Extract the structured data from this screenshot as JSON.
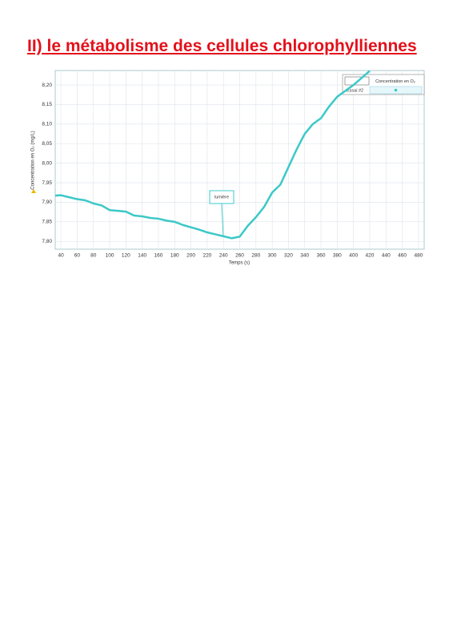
{
  "title": "II) le métabolisme des cellules chlorophylliennes",
  "chart_data": {
    "type": "line",
    "xlabel": "Temps (s)",
    "ylabel": "Concentration en O₂ (mg/L)",
    "annotation": "lumière",
    "legend_header": "Concentration en O₂",
    "x": [
      33,
      40,
      50,
      60,
      70,
      80,
      90,
      100,
      110,
      120,
      130,
      140,
      150,
      160,
      170,
      180,
      190,
      200,
      210,
      220,
      230,
      240,
      250,
      260,
      270,
      280,
      290,
      300,
      310,
      320,
      330,
      340,
      350,
      360,
      370,
      380,
      390,
      400,
      410,
      420
    ],
    "series": [
      {
        "name": "Essai  #2",
        "color": "#3cc8c8",
        "values": [
          7.917,
          7.918,
          7.913,
          7.908,
          7.905,
          7.897,
          7.892,
          7.88,
          7.878,
          7.876,
          7.866,
          7.864,
          7.86,
          7.858,
          7.853,
          7.85,
          7.842,
          7.836,
          7.83,
          7.823,
          7.818,
          7.813,
          7.808,
          7.812,
          7.84,
          7.862,
          7.888,
          7.925,
          7.945,
          7.99,
          8.035,
          8.075,
          8.1,
          8.115,
          8.145,
          8.17,
          8.185,
          8.2,
          8.218,
          8.236
        ]
      }
    ],
    "xlim": [
      33,
      487
    ],
    "ylim": [
      7.78,
      8.237
    ],
    "xticks": [
      40,
      60,
      80,
      100,
      120,
      140,
      160,
      180,
      200,
      220,
      240,
      260,
      280,
      300,
      320,
      340,
      360,
      380,
      400,
      420,
      440,
      460,
      480
    ],
    "yticks": [
      {
        "value": 7.8,
        "label": "7,80"
      },
      {
        "value": 7.85,
        "label": "7,85"
      },
      {
        "value": 7.9,
        "label": "7,90"
      },
      {
        "value": 7.95,
        "label": "7,95"
      },
      {
        "value": 8.0,
        "label": "8,00"
      },
      {
        "value": 8.05,
        "label": "8,05"
      },
      {
        "value": 8.1,
        "label": "8,10"
      },
      {
        "value": 8.15,
        "label": "8,15"
      },
      {
        "value": 8.2,
        "label": "8,20"
      }
    ],
    "grid": true
  }
}
